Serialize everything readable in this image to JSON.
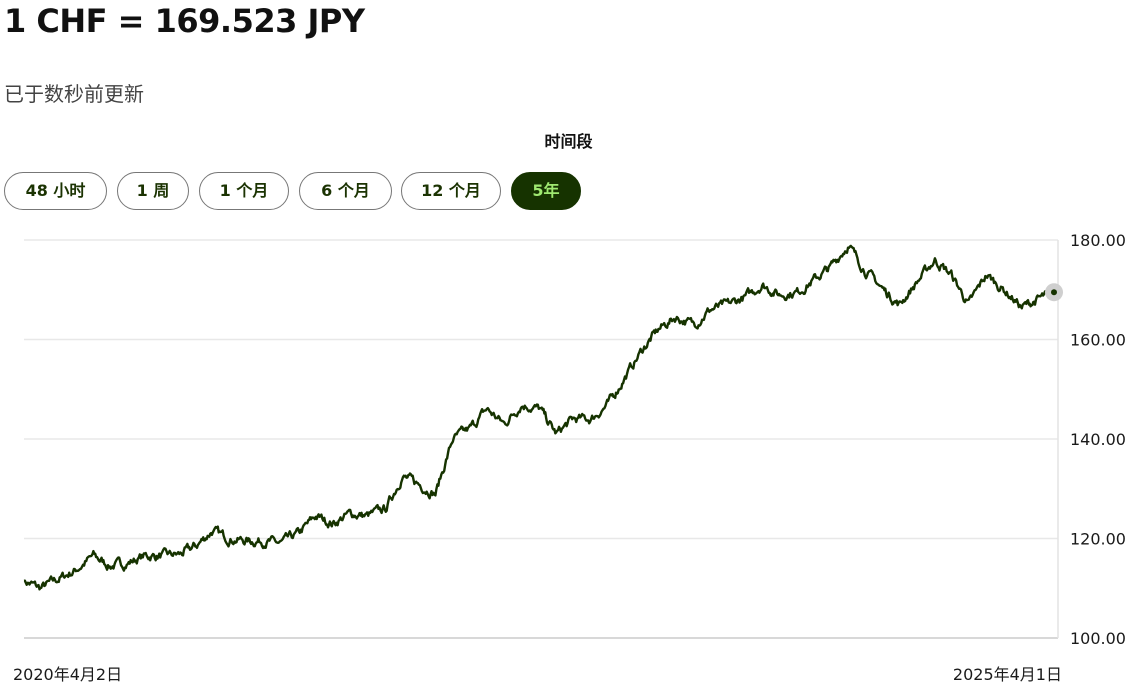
{
  "header": {
    "title": "1 CHF = 169.523 JPY",
    "updated": "已于数秒前更新"
  },
  "period": {
    "label": "时间段",
    "tabs": [
      {
        "label": "48 小时",
        "active": false
      },
      {
        "label": "1 周",
        "active": false
      },
      {
        "label": "1 个月",
        "active": false
      },
      {
        "label": "6 个月",
        "active": false
      },
      {
        "label": "12 个月",
        "active": false
      },
      {
        "label": "5年",
        "active": true
      }
    ]
  },
  "colors": {
    "line": "#163300",
    "active_tab_bg": "#163300",
    "active_tab_text": "#9fe870",
    "grid": "#e8e8e8",
    "end_marker": "#cfcfcf"
  },
  "chart_data": {
    "type": "line",
    "title": "",
    "xlabel": "",
    "ylabel": "",
    "x_start_label": "2020年4月2日",
    "x_end_label": "2025年4月1日",
    "x_range": [
      "2020-04-02",
      "2025-04-01"
    ],
    "ylim": [
      100,
      180
    ],
    "yticks": [
      "100.00",
      "120.00",
      "140.00",
      "160.00",
      "180.00"
    ],
    "grid": true,
    "y_axis_side": "right",
    "series": [
      {
        "x": [
          "2020-04-02",
          "2020-05-01",
          "2020-06-01",
          "2020-07-01",
          "2020-08-03",
          "2020-09-01",
          "2020-10-01",
          "2020-11-02",
          "2020-12-01",
          "2021-01-04",
          "2021-02-01",
          "2021-03-01",
          "2021-04-01",
          "2021-05-03",
          "2021-06-01",
          "2021-07-01",
          "2021-08-02",
          "2021-09-01",
          "2021-10-01",
          "2021-11-01",
          "2021-12-01",
          "2022-01-03",
          "2022-02-01",
          "2022-03-01",
          "2022-04-01",
          "2022-05-02",
          "2022-06-01",
          "2022-07-01",
          "2022-08-01",
          "2022-09-01",
          "2022-10-03",
          "2022-11-01",
          "2022-12-01",
          "2023-01-02",
          "2023-02-01",
          "2023-03-01",
          "2023-04-03",
          "2023-05-01",
          "2023-06-01",
          "2023-07-03",
          "2023-08-01",
          "2023-09-01",
          "2023-10-02",
          "2023-11-01",
          "2023-12-01",
          "2024-01-02",
          "2024-02-01",
          "2024-03-01",
          "2024-04-01",
          "2024-05-01",
          "2024-06-03",
          "2024-07-01",
          "2024-08-01",
          "2024-09-02",
          "2024-10-01",
          "2024-11-01",
          "2024-12-02",
          "2025-01-02",
          "2025-02-03",
          "2025-03-03",
          "2025-04-01"
        ],
        "values": [
          111.5,
          110.0,
          111.8,
          113.5,
          116.5,
          114.5,
          115.0,
          116.5,
          116.5,
          116.8,
          118.5,
          121.5,
          120.0,
          119.5,
          119.5,
          119.0,
          121.0,
          124.5,
          123.0,
          125.0,
          124.5,
          126.0,
          132.5,
          131.0,
          129.0,
          140.0,
          142.0,
          146.0,
          143.0,
          147.0,
          146.0,
          141.0,
          144.0,
          144.0,
          147.0,
          152.0,
          158.0,
          162.0,
          164.5,
          163.0,
          166.0,
          167.0,
          168.5,
          171.0,
          169.0,
          169.5,
          172.0,
          174.5,
          179.0,
          174.0,
          170.0,
          167.0,
          171.5,
          176.0,
          173.0,
          167.0,
          173.0,
          170.0,
          166.5,
          168.0,
          169.5
        ]
      }
    ]
  }
}
